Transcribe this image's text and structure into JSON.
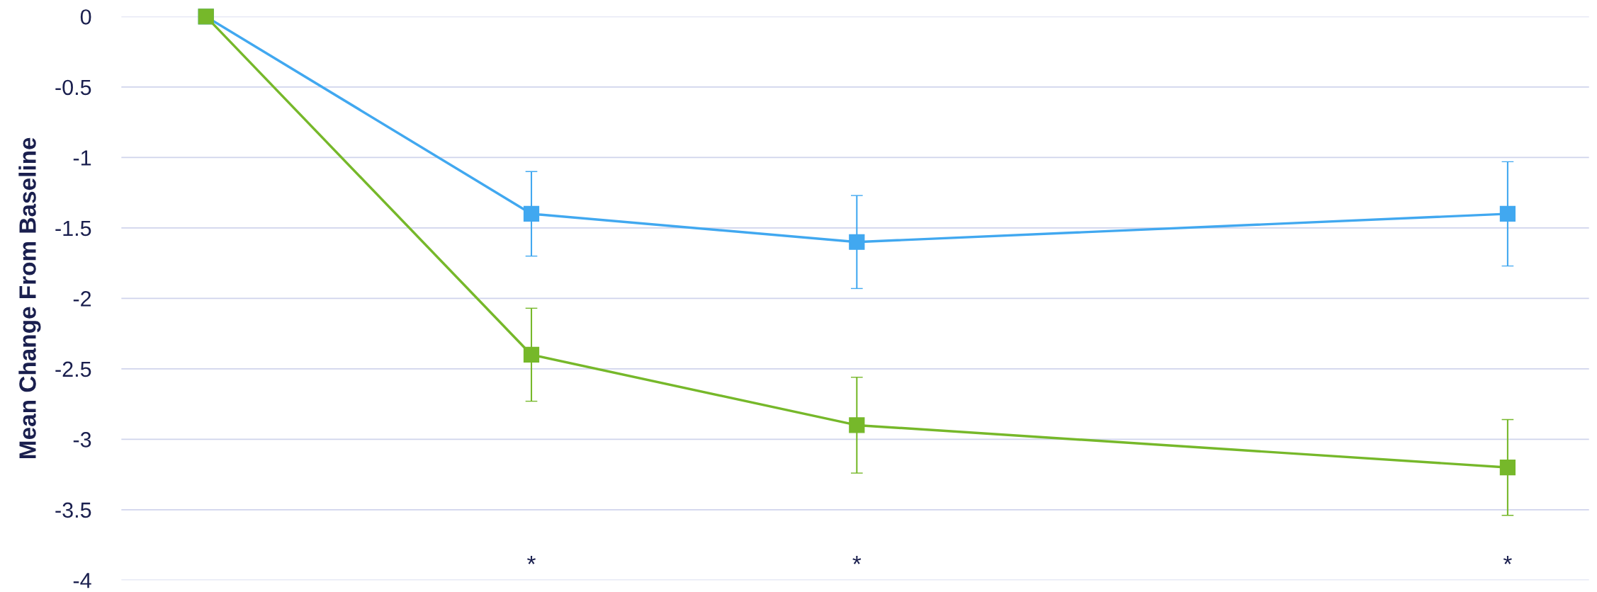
{
  "chart_data": {
    "type": "line",
    "ylabel": "Mean Change From Baseline",
    "categories": [
      null,
      null,
      null,
      null,
      null
    ],
    "series": [
      {
        "color": "#41a8f0",
        "values": [
          0,
          -1.4,
          -1.6,
          null,
          -1.4
        ],
        "errors": [
          null,
          0.3,
          0.33,
          null,
          0.37
        ]
      },
      {
        "color": "#76b82a",
        "values": [
          0,
          -2.4,
          -2.9,
          null,
          -3.2
        ],
        "errors": [
          null,
          0.33,
          0.34,
          null,
          0.34
        ]
      }
    ],
    "ylim": [
      -4,
      0
    ],
    "yticks": [
      -4,
      -3.5,
      -3,
      -2.5,
      -2,
      -1.5,
      -1,
      -0.5,
      0
    ],
    "grid": "y",
    "marker": "square",
    "line_style": "solid",
    "tick_labels": "y",
    "annotations": [
      "*",
      "*",
      "*"
    ]
  }
}
